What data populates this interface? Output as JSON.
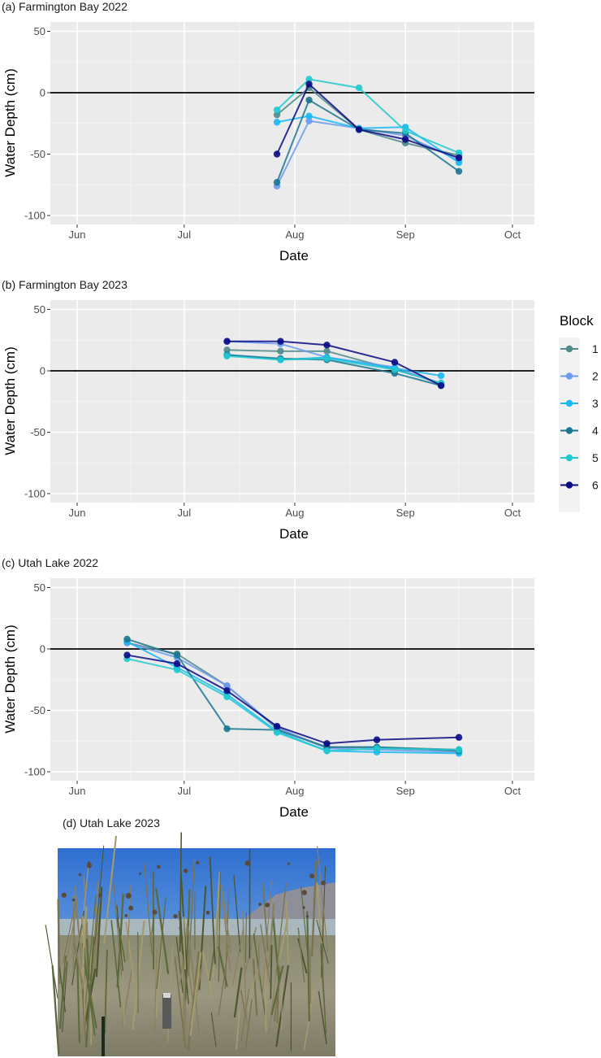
{
  "block_colors": {
    "1": "#4f8a8b",
    "2": "#6c9bef",
    "3": "#1ab8f2",
    "4": "#1c7690",
    "5": "#20c9cf",
    "6": "#0a0a85"
  },
  "legend": {
    "title": "Block",
    "items": [
      "1",
      "2",
      "3",
      "4",
      "5",
      "6"
    ]
  },
  "chart_data": [
    {
      "type": "line",
      "title": "(a) Farmington Bay 2022",
      "xlabel": "Date",
      "ylabel": "Water Depth (cm)",
      "year": 2022,
      "ylim": [
        -105,
        55
      ],
      "yticks": [
        50,
        0,
        -50,
        -100
      ],
      "xticks": [
        "Jun",
        "Jul",
        "Aug",
        "Sep",
        "Oct"
      ],
      "grid": true,
      "reference_line": 0,
      "x": [
        "2022-07-27",
        "2022-08-05",
        "2022-08-19",
        "2022-09-01",
        "2022-09-16"
      ],
      "series": [
        {
          "name": "1",
          "values": [
            -18,
            4,
            -30,
            -41,
            -51
          ]
        },
        {
          "name": "2",
          "values": [
            -76,
            -23,
            -29,
            -35,
            -55
          ]
        },
        {
          "name": "3",
          "values": [
            -24,
            -19,
            -29,
            -28,
            -57
          ]
        },
        {
          "name": "4",
          "values": [
            -73,
            -6,
            -30,
            -33,
            -64
          ]
        },
        {
          "name": "5",
          "values": [
            -14,
            11,
            4,
            -31,
            -49
          ]
        },
        {
          "name": "6",
          "values": [
            -50,
            7,
            -30,
            -38,
            -53
          ]
        }
      ]
    },
    {
      "type": "line",
      "title": "(b) Farmington Bay 2023",
      "xlabel": "Date",
      "ylabel": "Water Depth (cm)",
      "year": 2023,
      "ylim": [
        -105,
        55
      ],
      "yticks": [
        50,
        0,
        -50,
        -100
      ],
      "xticks": [
        "Jun",
        "Jul",
        "Aug",
        "Sep",
        "Oct"
      ],
      "grid": true,
      "reference_line": 0,
      "legend": "right",
      "x": [
        "2023-07-13",
        "2023-07-28",
        "2023-08-10",
        "2023-08-29",
        "2023-09-11"
      ],
      "series": [
        {
          "name": "1",
          "values": [
            17,
            16,
            16,
            1,
            -10
          ]
        },
        {
          "name": "2",
          "values": [
            24,
            22,
            11,
            3,
            -11
          ]
        },
        {
          "name": "3",
          "values": [
            13,
            9,
            11,
            2,
            -4
          ]
        },
        {
          "name": "4",
          "values": [
            13,
            10,
            9,
            -2,
            -12
          ]
        },
        {
          "name": "5",
          "values": [
            12,
            9,
            10,
            1,
            -10
          ]
        },
        {
          "name": "6",
          "values": [
            24,
            24,
            21,
            7,
            -12
          ]
        }
      ]
    },
    {
      "type": "line",
      "title": "(c) Utah Lake 2022",
      "xlabel": "Date",
      "ylabel": "Water Depth (cm)",
      "year": 2022,
      "ylim": [
        -105,
        55
      ],
      "yticks": [
        50,
        0,
        -50,
        -100
      ],
      "xticks": [
        "Jun",
        "Jul",
        "Aug",
        "Sep",
        "Oct"
      ],
      "grid": true,
      "reference_line": 0,
      "x": [
        "2022-06-15",
        "2022-06-29",
        "2022-07-13",
        "2022-07-27",
        "2022-08-10",
        "2022-08-24",
        "2022-09-16"
      ],
      "series": [
        {
          "name": "1",
          "values": [
            5,
            -4,
            -30,
            -65,
            -80,
            -80,
            -82
          ]
        },
        {
          "name": "2",
          "values": [
            5,
            -7,
            -30,
            -64,
            -81,
            -82,
            -84
          ]
        },
        {
          "name": "3",
          "values": [
            6,
            -15,
            -37,
            -67,
            -83,
            -84,
            -85
          ]
        },
        {
          "name": "4",
          "values": [
            8,
            -5,
            -65,
            -66,
            -80,
            -80,
            -83
          ]
        },
        {
          "name": "5",
          "values": [
            -8,
            -17,
            -39,
            -68,
            -83,
            -81,
            -82
          ]
        },
        {
          "name": "6",
          "values": [
            -5,
            -12,
            -34,
            -63,
            -77,
            -74,
            -72
          ]
        }
      ]
    }
  ],
  "photo_panel": {
    "title": "(d)  Utah Lake 2023"
  }
}
